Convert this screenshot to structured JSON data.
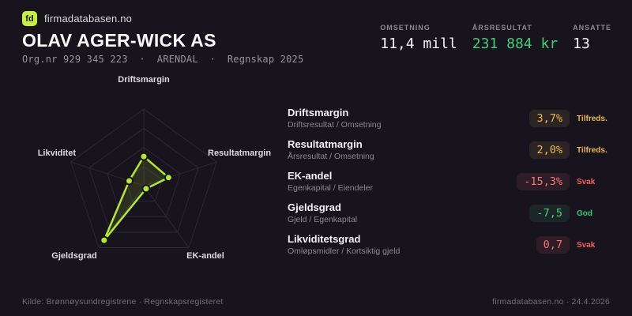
{
  "brand": {
    "logo_text": "fd",
    "name": "firmadatabasen.no"
  },
  "company": {
    "name": "OLAV AGER-WICK AS",
    "meta": "Org.nr 929 345 223  ·  ARENDAL  ·  Regnskap 2025"
  },
  "stats": [
    {
      "label": "OMSETNING",
      "value": "11,4 mill",
      "color": "white"
    },
    {
      "label": "ÅRSRESULTAT",
      "value": "231 884 kr",
      "color": "green"
    },
    {
      "label": "ANSATTE",
      "value": "13",
      "color": "white"
    }
  ],
  "chart_data": {
    "type": "radar",
    "axes": [
      "Driftsmargin",
      "Resultatmargin",
      "EK-andel",
      "Gjeldsgrad",
      "Likviditet"
    ],
    "values_normalized": [
      0.38,
      0.34,
      0.05,
      0.88,
      0.2
    ],
    "ring_fractions": [
      0.25,
      0.5,
      0.75,
      1.0
    ],
    "line_color": "#b7e72c",
    "fill_color": "rgba(183,231,44,0.13)",
    "grid_color": "#2b2836",
    "dot_stroke_color": "#17141d"
  },
  "metrics": [
    {
      "title": "Driftsmargin",
      "formula": "Driftsresultat / Omsetning",
      "value": "3,7%",
      "status": "Tilfreds.",
      "status_type": "warn"
    },
    {
      "title": "Resultatmargin",
      "formula": "Årsresultat / Omsetning",
      "value": "2,0%",
      "status": "Tilfreds.",
      "status_type": "warn"
    },
    {
      "title": "EK-andel",
      "formula": "Egenkapital / Eiendeler",
      "value": "-15,3%",
      "status": "Svak",
      "status_type": "bad"
    },
    {
      "title": "Gjeldsgrad",
      "formula": "Gjeld / Egenkapital",
      "value": "-7,5",
      "status": "God",
      "status_type": "good"
    },
    {
      "title": "Likviditetsgrad",
      "formula": "Omløpsmidler / Kortsiktig gjeld",
      "value": "0,7",
      "status": "Svak",
      "status_type": "bad"
    }
  ],
  "footer": {
    "source": "Kilde: Brønnøysundregistrene · Regnskapsregisteret",
    "brand_date": "firmadatabasen.no · 24.4.2026"
  }
}
